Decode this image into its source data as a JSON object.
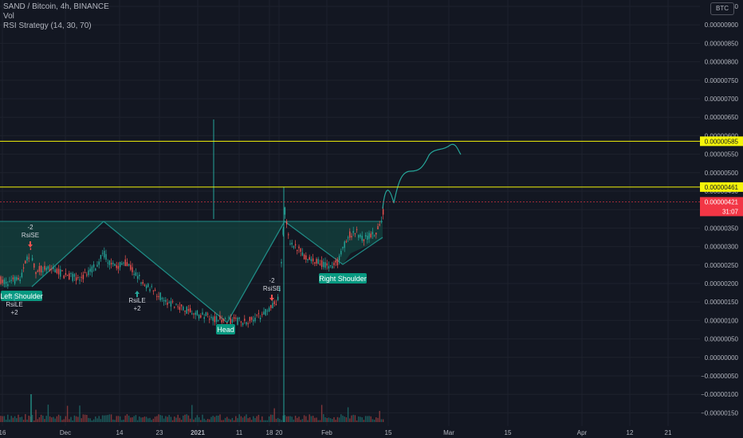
{
  "legend": {
    "symbol": "SAND / Bitcoin, 4h, BINANCE",
    "volume": "Vol",
    "strategy": "RSI Strategy (14, 30, 70)"
  },
  "currency_badge": "BTC",
  "colors": {
    "background": "#131722",
    "grid": "#1e222d",
    "up": "#26a69a",
    "down": "#ef5350",
    "pattern": "#1f8a84",
    "resistance": "#f5f50a",
    "last_price": "#f23645",
    "text": "#b2b5be"
  },
  "price_axis": {
    "labels": [
      "0.00000950",
      "0.00000900",
      "0.00000850",
      "0.00000800",
      "0.00000750",
      "0.00000700",
      "0.00000650",
      "0.00000600",
      "0.00000550",
      "0.00000500",
      "0.00000450",
      "0.00000400",
      "0.00000350",
      "0.00000300",
      "0.00000250",
      "0.00000200",
      "0.00000150",
      "0.00000100",
      "0.00000050",
      "0.00000000",
      "−0.00000050",
      "−0.00000100",
      "−0.00000150"
    ],
    "levels": [
      9.5e-06,
      9e-06,
      8.5e-06,
      8e-06,
      7.5e-06,
      7e-06,
      6.5e-06,
      6e-06,
      5.5e-06,
      5e-06,
      4.5e-06,
      4e-06,
      3.5e-06,
      3e-06,
      2.5e-06,
      2e-06,
      1.5e-06,
      1e-06,
      5e-07,
      0,
      -5e-07,
      -1e-06,
      -1.5e-06
    ]
  },
  "time_axis": {
    "labels": [
      "16",
      "Dec",
      "14",
      "23",
      "2021",
      "11",
      "18",
      "20",
      "Feb",
      "15",
      "Mar",
      "15",
      "Apr",
      "12",
      "21"
    ]
  },
  "horizontal_lines": [
    {
      "label": "0.00000585",
      "value": 5.85e-06
    },
    {
      "label": "0.00000461",
      "value": 4.61e-06
    }
  ],
  "last_price": {
    "label": "0.00000421",
    "countdown": "31:07",
    "value": 4.21e-06
  },
  "annotations": {
    "left_shoulder": "Left Shoulder",
    "head": "Head",
    "right_shoulder": "Right Shoulder",
    "signals": [
      {
        "text": "RsiSE",
        "value": "-2",
        "direction": "down"
      },
      {
        "text": "RsiLE",
        "value": "+2",
        "direction": "up"
      },
      {
        "text": "RsiLE",
        "value": "+2",
        "direction": "up"
      },
      {
        "text": "RsiSE",
        "value": "-2",
        "direction": "down"
      }
    ]
  },
  "chart_data": {
    "type": "candlestick",
    "title": "SAND / Bitcoin, 4h, BINANCE",
    "ylim": [
      -1.7e-06,
      9.6e-06
    ],
    "pattern": "head and shoulders",
    "price_path": [
      {
        "x": "16",
        "y": 2.3e-06
      },
      {
        "x": "start Dec",
        "y": 3e-06
      },
      {
        "x": "Dec",
        "y": 2.6e-06
      },
      {
        "x": "Dec peak",
        "y": 3e-06
      },
      {
        "x": "14",
        "y": 2.2e-06
      },
      {
        "x": "23",
        "y": 1.2e-06
      },
      {
        "x": "2021",
        "y": 1.1e-06
      },
      {
        "x": "11",
        "y": 1e-06
      },
      {
        "x": "18",
        "y": 1.5e-06
      },
      {
        "x": "20",
        "y": 4.6e-06
      },
      {
        "x": "late Jan",
        "y": 2.8e-06
      },
      {
        "x": "Feb",
        "y": 2.4e-06
      },
      {
        "x": "early Feb",
        "y": 3.7e-06
      },
      {
        "x": "mid Feb",
        "y": 3.3e-06
      },
      {
        "x": "15",
        "y": 4.2e-06
      }
    ],
    "projection": [
      {
        "x": "15",
        "y": 4.6e-06
      },
      {
        "x": "late Feb",
        "y": 5.1e-06
      },
      {
        "x": "Mar",
        "y": 5.8e-06
      }
    ]
  }
}
